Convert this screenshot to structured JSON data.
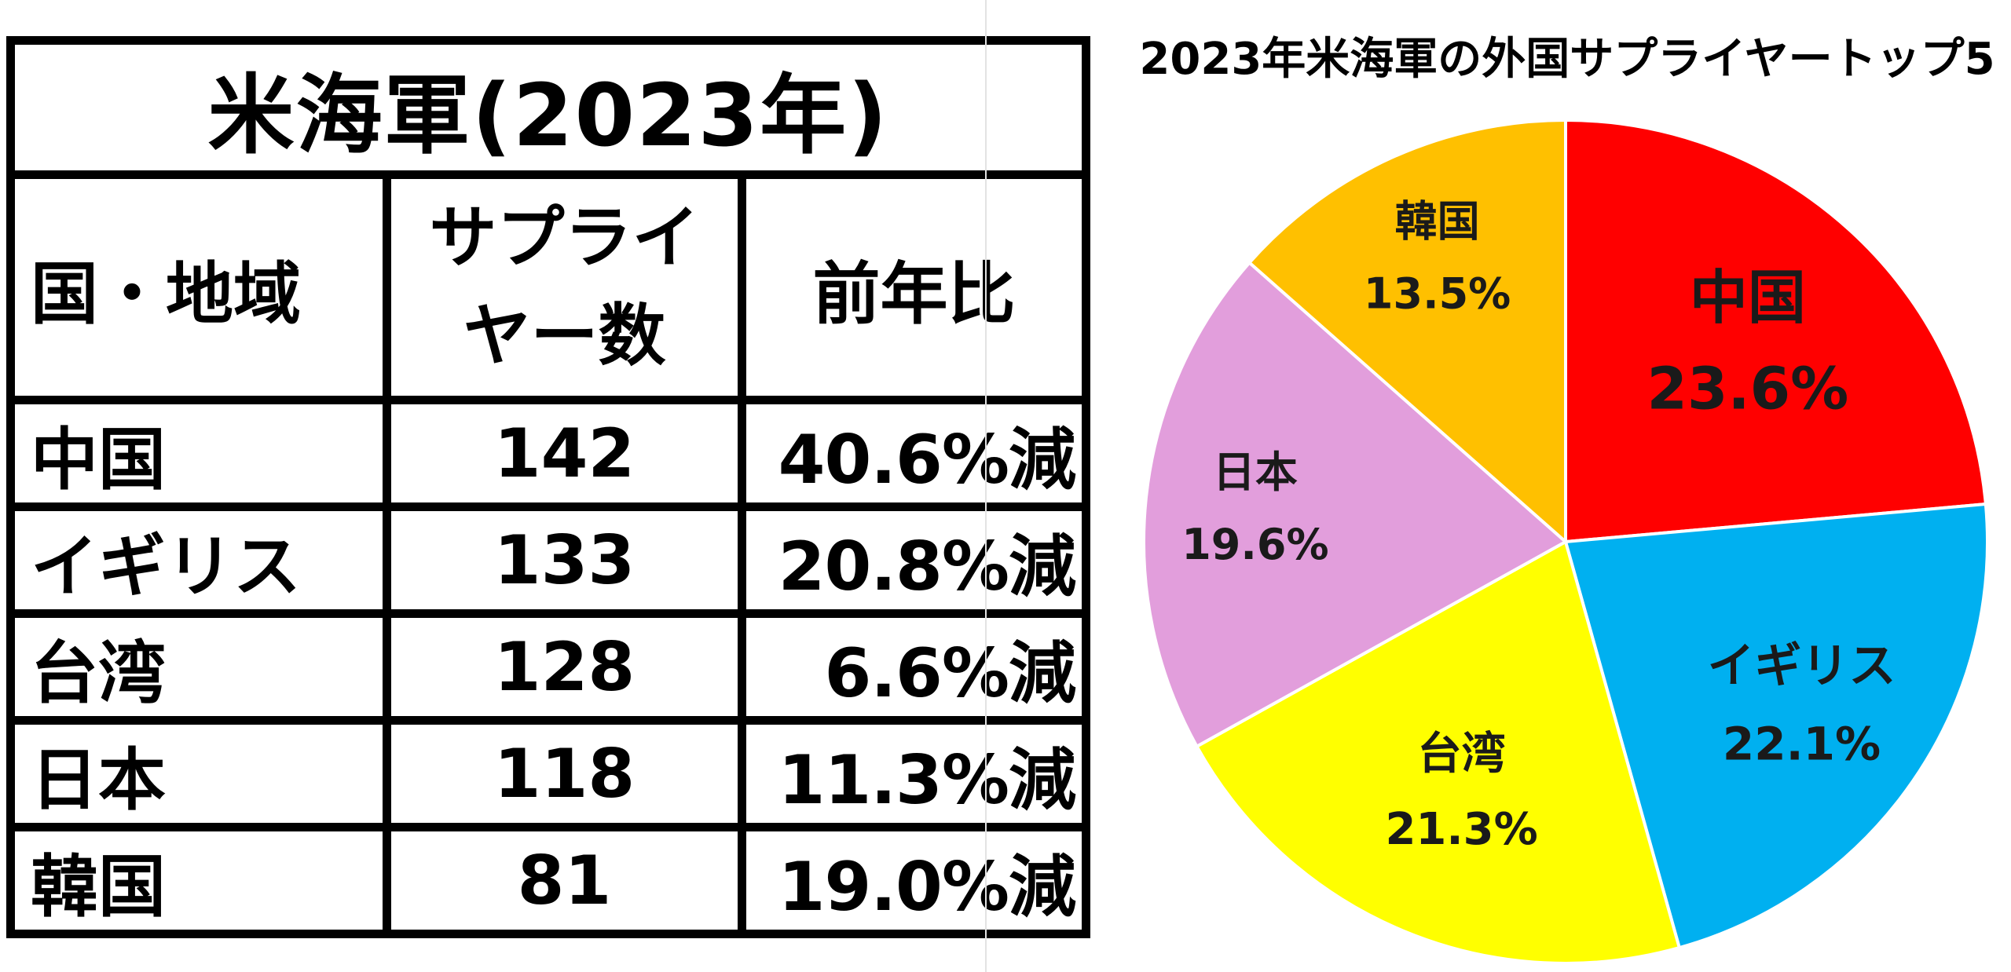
{
  "table": {
    "title": "米海軍(2023年)",
    "headers": {
      "country": "国・地域",
      "count_line1": "サプライ",
      "count_line2": "ヤー数",
      "yoy": "前年比"
    },
    "rows": [
      {
        "country": "中国",
        "count": "142",
        "yoy": "40.6%減"
      },
      {
        "country": "イギリス",
        "count": "133",
        "yoy": "20.8%減"
      },
      {
        "country": "台湾",
        "count": "128",
        "yoy": "6.6%減"
      },
      {
        "country": "日本",
        "count": "118",
        "yoy": "11.3%減"
      },
      {
        "country": "韓国",
        "count": "81",
        "yoy": "19.0%減"
      }
    ]
  },
  "chart_data": {
    "type": "pie",
    "title": "2023年米海軍の外国サプライヤートップ5",
    "slices": [
      {
        "label": "中国",
        "value": 23.6,
        "display": "23.6%",
        "color": "#ff0000"
      },
      {
        "label": "イギリス",
        "value": 22.1,
        "display": "22.1%",
        "color": "#00b0f0"
      },
      {
        "label": "台湾",
        "value": 21.3,
        "display": "21.3%",
        "color": "#ffff00"
      },
      {
        "label": "日本",
        "value": 19.6,
        "display": "19.6%",
        "color": "#e29edc"
      },
      {
        "label": "韓国",
        "value": 13.5,
        "display": "13.5%",
        "color": "#ffc000"
      }
    ],
    "start": "12 o'clock",
    "direction": "clockwise",
    "legend": "none",
    "data_labels": "inside"
  }
}
